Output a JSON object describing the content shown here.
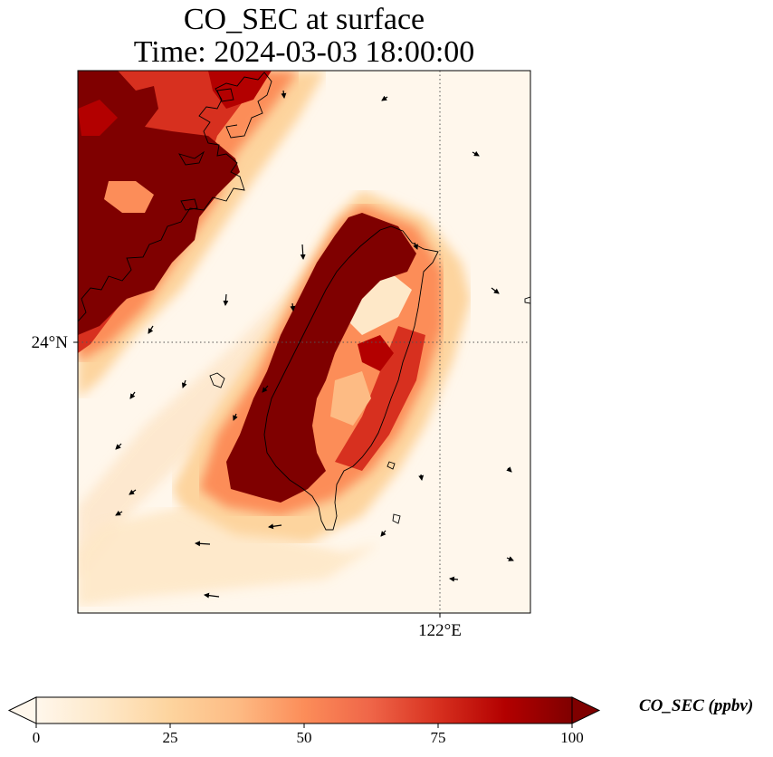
{
  "title": {
    "line1": "CO_SEC at surface",
    "line2": "Time: 2024-03-03 18:00:00"
  },
  "axes": {
    "lat_tick": "24°N",
    "lon_tick": "122°E"
  },
  "colorbar": {
    "label": "CO_SEC (ppbv)",
    "ticks": [
      "0",
      "25",
      "50",
      "75",
      "100"
    ],
    "min": 0,
    "max": 100,
    "colormap": "OrRd",
    "extend": "both",
    "colors": [
      "#fff7ec",
      "#fee8c8",
      "#fdd49e",
      "#fdbb84",
      "#fc8d59",
      "#ef6548",
      "#d7301f",
      "#b30000",
      "#7f0000"
    ]
  },
  "map": {
    "background_color": "#fff7ec",
    "high_color": "#7f0000",
    "coastline_color": "#000000",
    "gridline_style": "dotted",
    "wind_vectors": "arrows"
  }
}
